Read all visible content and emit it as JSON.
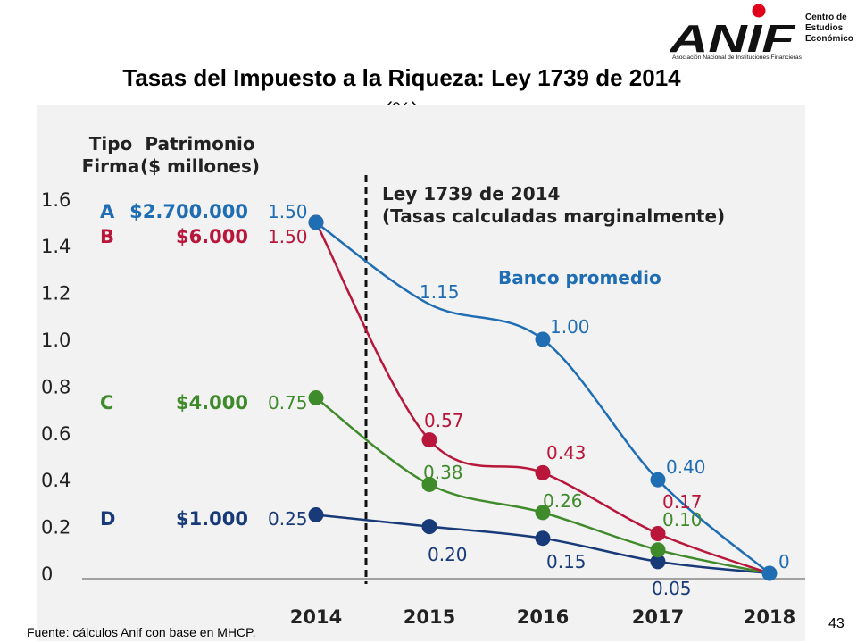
{
  "logo": {
    "wordmark": "ANIF",
    "side_text": [
      "Centro de",
      "Estudios",
      "Económicos"
    ],
    "tagline": "Asociación Nacional de Instituciones Financieras"
  },
  "title": "Tasas del Impuesto a la Riqueza: Ley 1739 de 2014",
  "subtitle": "(%)",
  "source": "Fuente: cálculos Anif con base en MHCP.",
  "page_number": "43",
  "chart_data": {
    "type": "line",
    "x": [
      2014,
      2015,
      2016,
      2017,
      2018
    ],
    "x_tick_labels": [
      "2014",
      "2015",
      "2016",
      "2017",
      "2018"
    ],
    "ylim": [
      0,
      1.6
    ],
    "y_ticks": [
      "0",
      "0.2",
      "0.4",
      "0.6",
      "0.8",
      "1.0",
      "1.2",
      "1.4",
      "1.6"
    ],
    "column_headers": {
      "tipo": [
        "Tipo",
        "Firma"
      ],
      "patrimonio": [
        "Patrimonio",
        "($ millones)"
      ]
    },
    "annotation": [
      "Ley 1739 de 2014",
      "(Tasas calculadas marginalmente)"
    ],
    "divider_after_x": 2014,
    "series": [
      {
        "name": "A",
        "patrimonio": "$2.700.000",
        "color": "#1f6db3",
        "values": [
          1.5,
          1.15,
          1.0,
          0.4,
          0
        ],
        "labels": [
          "1.50",
          "1.15",
          "1.00",
          "0.40",
          "0"
        ],
        "markers": [
          true,
          false,
          true,
          true,
          true
        ],
        "series_label": "Banco promedio"
      },
      {
        "name": "B",
        "patrimonio": "$6.000",
        "color": "#b8163a",
        "values": [
          1.5,
          0.57,
          0.43,
          0.17,
          0
        ],
        "labels": [
          "1.50",
          "0.57",
          "0.43",
          "0.17",
          ""
        ],
        "markers": [
          true,
          true,
          true,
          true,
          false
        ]
      },
      {
        "name": "C",
        "patrimonio": "$4.000",
        "color": "#3f8a2a",
        "values": [
          0.75,
          0.38,
          0.26,
          0.1,
          0
        ],
        "labels": [
          "0.75",
          "0.38",
          "0.26",
          "0.10",
          ""
        ],
        "markers": [
          true,
          true,
          true,
          true,
          false
        ]
      },
      {
        "name": "D",
        "patrimonio": "$1.000",
        "color": "#183a78",
        "values": [
          0.25,
          0.2,
          0.15,
          0.05,
          0
        ],
        "labels": [
          "0.25",
          "0.20",
          "0.15",
          "0.05",
          ""
        ],
        "markers": [
          true,
          true,
          true,
          true,
          false
        ]
      }
    ],
    "colors": {
      "label_blue": "#1f6db3",
      "label_green": "#3f8a2a",
      "label_red": "#b8163a",
      "axis_text": "#222222",
      "panel_bg": "#f2f2f2"
    }
  }
}
